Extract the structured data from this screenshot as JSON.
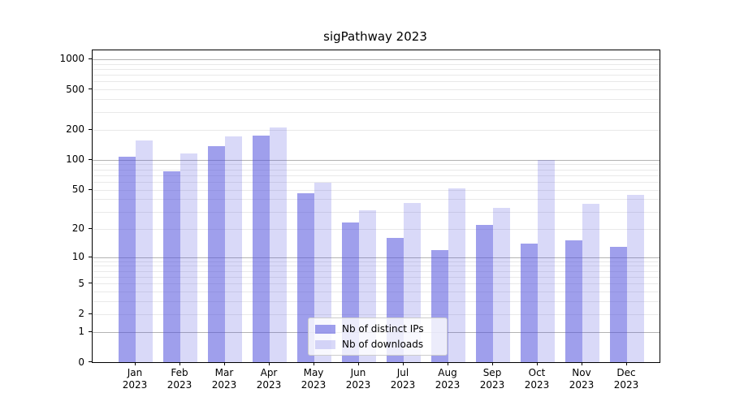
{
  "title": "sigPathway 2023",
  "legend": {
    "items": [
      {
        "label": "Nb of distinct IPs",
        "color_key": "ips_bar"
      },
      {
        "label": "Nb of downloads",
        "color_key": "downloads_bar"
      }
    ]
  },
  "colors": {
    "ips_bar": "rgba(80,80,221,0.55)",
    "downloads_bar": "rgba(80,80,221,0.22)",
    "grid_major": "#b3b3b3",
    "grid_minor": "#e9e9e9",
    "frame": "#000000",
    "background": "#ffffff"
  },
  "chart_data": {
    "type": "bar",
    "title": "sigPathway 2023",
    "categories": [
      "Jan 2023",
      "Feb 2023",
      "Mar 2023",
      "Apr 2023",
      "May 2023",
      "Jun 2023",
      "Jul 2023",
      "Aug 2023",
      "Sep 2023",
      "Oct 2023",
      "Nov 2023",
      "Dec 2023"
    ],
    "x_tick_line1": [
      "Jan",
      "Feb",
      "Mar",
      "Apr",
      "May",
      "Jun",
      "Jul",
      "Aug",
      "Sep",
      "Oct",
      "Nov",
      "Dec"
    ],
    "x_tick_line2": [
      "2023",
      "2023",
      "2023",
      "2023",
      "2023",
      "2023",
      "2023",
      "2023",
      "2023",
      "2023",
      "2023",
      "2023"
    ],
    "series": [
      {
        "name": "Nb of distinct IPs",
        "values": [
          107,
          77,
          137,
          174,
          46,
          23,
          16,
          12,
          22,
          14,
          15,
          13
        ]
      },
      {
        "name": "Nb of downloads",
        "values": [
          157,
          116,
          170,
          210,
          59,
          31,
          37,
          52,
          33,
          100,
          36,
          44
        ]
      }
    ],
    "xlabel": "",
    "ylabel": "",
    "yscale": "log1p",
    "yticks": [
      0,
      1,
      2,
      5,
      10,
      20,
      50,
      100,
      200,
      500,
      1000
    ],
    "major_grid_values": [
      1,
      10,
      100,
      1000
    ],
    "ylim": [
      0,
      1200
    ],
    "grid": true,
    "legend_position": "lower center"
  }
}
